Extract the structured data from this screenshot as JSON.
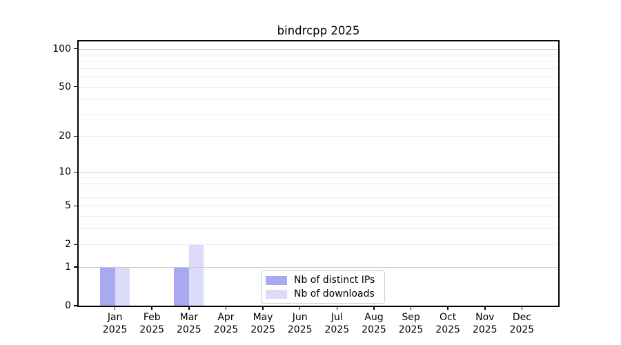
{
  "chart_data": {
    "type": "bar",
    "title": "bindrcpp 2025",
    "months": [
      "Jan",
      "Feb",
      "Mar",
      "Apr",
      "May",
      "Jun",
      "Jul",
      "Aug",
      "Sep",
      "Oct",
      "Nov",
      "Dec"
    ],
    "year": "2025",
    "series": [
      {
        "name": "Nb of distinct IPs",
        "color": "#a9a9f1",
        "values": [
          1,
          0,
          1,
          0,
          0,
          0,
          0,
          0,
          0,
          0,
          0,
          0
        ]
      },
      {
        "name": "Nb of downloads",
        "color": "#dcdcf8",
        "values": [
          1,
          0,
          2,
          0,
          0,
          0,
          0,
          0,
          0,
          0,
          0,
          0
        ]
      }
    ],
    "y_axis": {
      "scale": "log1p",
      "tick_labels": [
        0,
        1,
        2,
        5,
        10,
        20,
        50,
        100
      ],
      "major_gridlines": [
        1,
        10,
        100
      ],
      "minor_gridlines": [
        2,
        3,
        4,
        5,
        6,
        7,
        8,
        9,
        20,
        30,
        40,
        50,
        60,
        70,
        80,
        90
      ],
      "ylim": [
        0,
        115
      ]
    },
    "xlabel": "",
    "ylabel": "",
    "legend": {
      "position": "lower center"
    },
    "colors": {
      "major_grid": "#c8c8c8",
      "minor_grid": "#ededed",
      "axis": "#000000",
      "background": "#ffffff",
      "legend_border": "#cccccc"
    }
  }
}
